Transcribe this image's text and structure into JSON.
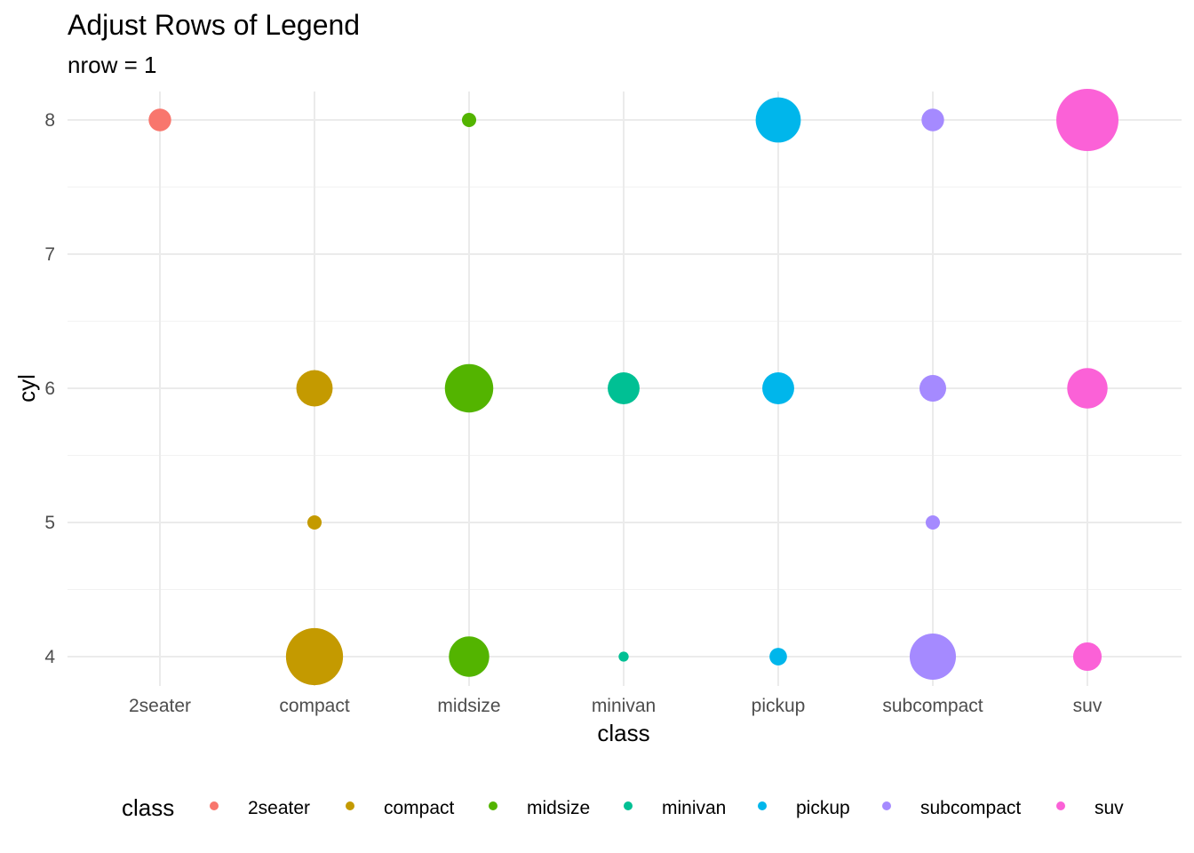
{
  "chart_data": {
    "type": "scatter",
    "title": "Adjust Rows of Legend",
    "subtitle": "nrow = 1",
    "xlabel": "class",
    "ylabel": "cyl",
    "categories": [
      "2seater",
      "compact",
      "midsize",
      "minivan",
      "pickup",
      "subcompact",
      "suv"
    ],
    "y_ticks": [
      4,
      5,
      6,
      7,
      8
    ],
    "ylim": [
      3.8,
      8.2
    ],
    "grid": true,
    "legend": {
      "title": "class",
      "placement": "bottom",
      "entries": [
        "2seater",
        "compact",
        "midsize",
        "minivan",
        "pickup",
        "subcompact",
        "suv"
      ]
    },
    "colors": {
      "2seater": "#F8766D",
      "compact": "#C49A00",
      "midsize": "#53B400",
      "minivan": "#00C094",
      "pickup": "#00B6EB",
      "subcompact": "#A58AFF",
      "suv": "#FB61D7"
    },
    "points": [
      {
        "x": "2seater",
        "y": 8,
        "count": 5
      },
      {
        "x": "compact",
        "y": 4,
        "count": 32
      },
      {
        "x": "compact",
        "y": 5,
        "count": 2
      },
      {
        "x": "compact",
        "y": 6,
        "count": 13
      },
      {
        "x": "midsize",
        "y": 4,
        "count": 16
      },
      {
        "x": "midsize",
        "y": 6,
        "count": 23
      },
      {
        "x": "midsize",
        "y": 8,
        "count": 2
      },
      {
        "x": "minivan",
        "y": 4,
        "count": 1
      },
      {
        "x": "minivan",
        "y": 6,
        "count": 10
      },
      {
        "x": "pickup",
        "y": 4,
        "count": 3
      },
      {
        "x": "pickup",
        "y": 6,
        "count": 10
      },
      {
        "x": "pickup",
        "y": 8,
        "count": 20
      },
      {
        "x": "subcompact",
        "y": 4,
        "count": 21
      },
      {
        "x": "subcompact",
        "y": 5,
        "count": 2
      },
      {
        "x": "subcompact",
        "y": 6,
        "count": 7
      },
      {
        "x": "subcompact",
        "y": 8,
        "count": 5
      },
      {
        "x": "suv",
        "y": 4,
        "count": 8
      },
      {
        "x": "suv",
        "y": 6,
        "count": 16
      },
      {
        "x": "suv",
        "y": 8,
        "count": 38
      }
    ]
  }
}
